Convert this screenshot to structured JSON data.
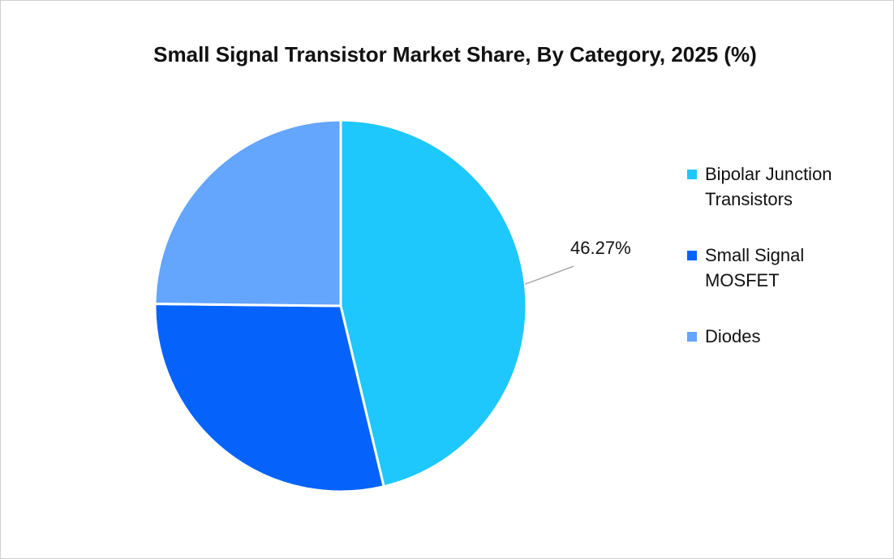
{
  "chart_data": {
    "type": "pie",
    "title": "Small Signal Transistor Market Share, By Category, 2025 (%)",
    "categories": [
      "Bipolar Junction Transistors",
      "Small Signal MOSFET",
      "Diodes"
    ],
    "values": [
      46.27,
      28.9,
      24.83
    ],
    "value_labels": [
      "46.27%",
      null,
      null
    ],
    "colors": [
      "#1ec8fc",
      "#0563fb",
      "#64a5fd"
    ],
    "legend": "right"
  }
}
